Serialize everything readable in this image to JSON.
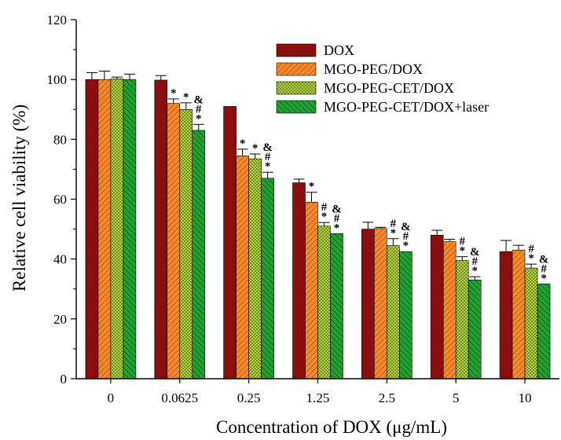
{
  "chart_data": {
    "type": "bar",
    "title": "",
    "xlabel": "Concentration of DOX (μg/mL)",
    "ylabel": "Relative cell viability (%)",
    "ylim": [
      0,
      120
    ],
    "yticks": [
      0,
      20,
      40,
      60,
      80,
      100,
      120
    ],
    "grid": false,
    "legend_position": "top-right",
    "categories": [
      "0",
      "0.0625",
      "0.25",
      "1.25",
      "2.5",
      "5",
      "10"
    ],
    "series": [
      {
        "name": "DOX",
        "color": "#8b0e0e",
        "pattern": "solid",
        "values": [
          100,
          99.8,
          91,
          65.5,
          50,
          48,
          42.5
        ],
        "errors": [
          2.3,
          1.5,
          0,
          1.2,
          2.3,
          1.6,
          3.7
        ]
      },
      {
        "name": "MGO-PEG/DOX",
        "color": "#f58a2a",
        "pattern": "hatch",
        "values": [
          100,
          92,
          74.5,
          59,
          50.2,
          45.8,
          43
        ],
        "errors": [
          2.8,
          1.5,
          2.2,
          3.3,
          0.4,
          0.8,
          1.6
        ],
        "marks": [
          "",
          "*",
          "*",
          "*",
          "",
          "",
          ""
        ]
      },
      {
        "name": "MGO-PEG-CET/DOX",
        "color": "#9fc53a",
        "pattern": "dots",
        "values": [
          100.2,
          90,
          73.5,
          51,
          44.5,
          39.5,
          37
        ],
        "errors": [
          0.6,
          2.2,
          1.6,
          1.2,
          2.3,
          1.3,
          1.3
        ],
        "marks": [
          "",
          "*",
          "*",
          "#\n*",
          "#\n*",
          "#\n*",
          "#\n*"
        ]
      },
      {
        "name": "MGO-PEG-CET/DOX+laser",
        "color": "#1a8a2a",
        "pattern": "hatch-rev",
        "values": [
          100,
          83,
          67,
          48.5,
          42.5,
          33,
          31.7
        ],
        "errors": [
          1.8,
          2.0,
          2.0,
          0,
          0,
          1.1,
          0
        ],
        "marks": [
          "",
          "&\n#\n*",
          "&\n#\n*",
          "&\n#\n*",
          "&\n#\n*",
          "&\n#\n*",
          "&\n#\n*"
        ]
      }
    ]
  }
}
